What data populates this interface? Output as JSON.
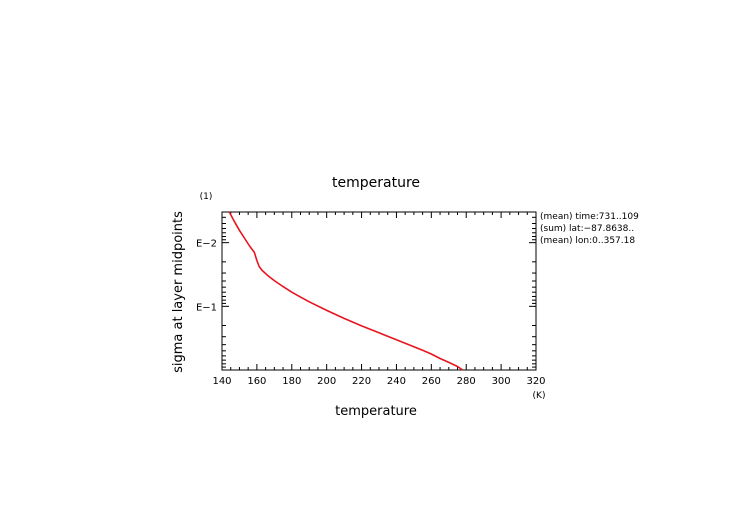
{
  "chart_data": {
    "type": "line",
    "title": "temperature",
    "xlabel": "temperature",
    "ylabel": "sigma at layer midpoints",
    "x_unit": "(K)",
    "y_unit": "(1)",
    "xlim": [
      140,
      320
    ],
    "xticks": [
      140,
      160,
      180,
      200,
      220,
      240,
      260,
      280,
      300,
      320
    ],
    "xtick_labels": [
      "140",
      "160",
      "180",
      "200",
      "220",
      "240",
      "260",
      "280",
      "300",
      "320"
    ],
    "y_scale": "log",
    "ylim": [
      1.0,
      0.0033
    ],
    "y_inverted": true,
    "yticks": [
      0.01,
      0.1
    ],
    "ytick_labels": [
      "E−2",
      "E−1"
    ],
    "grid": false,
    "legend": "none",
    "annotations": [
      "(mean) time:731..109",
      "(sum) lat:−87.8638..",
      "(mean) lon:0..357.18"
    ],
    "series": [
      {
        "color": "#e8141e",
        "x": [
          144.2,
          147,
          150,
          153,
          156,
          158.5,
          160,
          161.3,
          163,
          166,
          170,
          175,
          180,
          185,
          190,
          200,
          210,
          220,
          230,
          240,
          250,
          255,
          260,
          265,
          270,
          275,
          278
        ],
        "y": [
          0.0033,
          0.0046,
          0.0064,
          0.0086,
          0.0115,
          0.0141,
          0.0191,
          0.0238,
          0.0273,
          0.0325,
          0.0395,
          0.049,
          0.06,
          0.0715,
          0.085,
          0.116,
          0.155,
          0.203,
          0.26,
          0.335,
          0.43,
          0.49,
          0.56,
          0.66,
          0.76,
          0.88,
          1.0
        ]
      }
    ]
  }
}
